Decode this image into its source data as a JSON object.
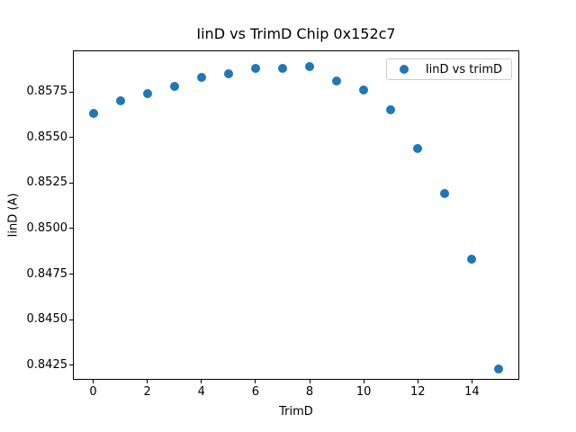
{
  "chart_data": {
    "type": "scatter",
    "title": "IinD vs TrimD Chip 0x152c7",
    "xlabel": "TrimD",
    "ylabel": "IinD (A)",
    "legend": {
      "label": "IinD vs trimD",
      "position": "upper right"
    },
    "marker_color": "#1f77b4",
    "x": [
      0,
      1,
      2,
      3,
      4,
      5,
      6,
      7,
      8,
      9,
      10,
      11,
      12,
      13,
      14,
      15
    ],
    "y": [
      0.8563,
      0.857,
      0.8574,
      0.8578,
      0.8583,
      0.8585,
      0.8588,
      0.8588,
      0.8589,
      0.8581,
      0.8576,
      0.8565,
      0.8544,
      0.8519,
      0.8483,
      0.8423
    ],
    "xlim": [
      -0.75,
      15.75
    ],
    "ylim": [
      0.84171,
      0.85977
    ],
    "xticks": [
      0,
      2,
      4,
      6,
      8,
      10,
      12,
      14
    ],
    "yticks": [
      0.8425,
      0.845,
      0.8475,
      0.85,
      0.8525,
      0.855,
      0.8575
    ],
    "ytick_format_decimals": 4,
    "grid": false,
    "background_color": "#ffffff",
    "spine_color": "#000000"
  }
}
